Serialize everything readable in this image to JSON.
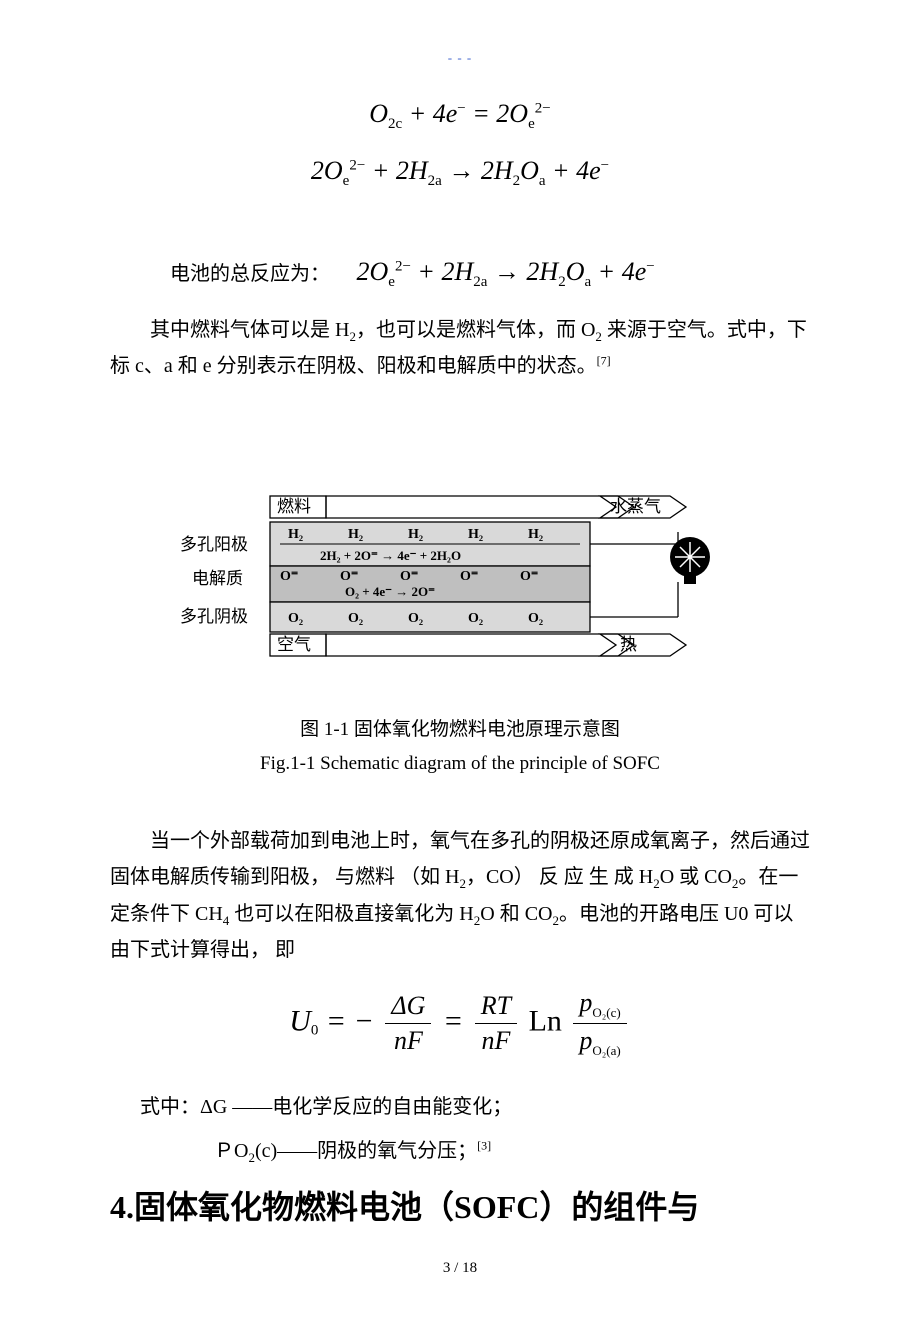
{
  "top_dash": "- - -",
  "equations": {
    "eq1_html": "O<sub>2c</sub> + 4e<sup>−</sup> = 2O<sub>e</sub><sup>2−</sup>",
    "eq2_html": "2O<sub>e</sub><sup>2−</sup> + 2H<sub>2a</sub> → 2H<sub>2</sub>O<sub>a</sub> + 4e<sup>−</sup>",
    "total_label": "电池的总反应为：",
    "total_html": "2O<sub>e</sub><sup>2−</sup> + 2H<sub>2a</sub> → 2H<sub>2</sub>O<sub>a</sub> + 4e<sup>−</sup>"
  },
  "paragraphs": {
    "p1_html": "其中燃料气体可以是 H<sub>2</sub>，也可以是燃料气体，而 O<sub>2</sub> 来源于空气。式中，下标 c、a 和 e 分别表示在阴极、阳极和电解质中的状态。<span class=\"ref-sup\">[7]</span>",
    "p2_html": "当一个外部载荷加到电池上时，氧气在多孔的阴极还原成氧离子，然后通过固体电解质传输到阳极，  与燃料 （如 H<sub>2</sub>，CO） 反 应  生  成 H<sub>2</sub>O 或 CO<sub>2</sub>。在一定条件下 CH<sub>4</sub> 也可以在阳极直接氧化为 H<sub>2</sub>O 和 CO<sub>2</sub>。电池的开路电压  U0 可以由下式计算得出，  即"
  },
  "figure": {
    "labels": {
      "fuel": "燃料",
      "steam": "水蒸气",
      "anode": "多孔阳极",
      "electrolyte": "电解质",
      "cathode": "多孔阴极",
      "air": "空气",
      "heat": "热",
      "H2": "H₂",
      "O2": "O₂",
      "Oeq": "O⁼",
      "anode_eq": "2H₂ + 2O⁼ → 4e⁻ + 2H₂O",
      "cathode_eq": "O₂ + 4e⁻ → 2O⁼"
    },
    "caption_cn": "图 1-1  固体氧化物燃料电池原理示意图",
    "caption_en": "Fig.1-1 Schematic diagram of the principle of SOFC",
    "colors": {
      "stroke": "#000000",
      "anode_fill": "#d9d9d9",
      "electrolyte_fill": "#bfbfbf",
      "cathode_fill": "#d9d9d9",
      "bulb_fill": "#000000"
    }
  },
  "nernst": {
    "U0": "U",
    "sub0": "0",
    "eq_sign": " = ",
    "minus": " − ",
    "dG": "ΔG",
    "nF": "nF",
    "RT": "RT",
    "Ln": "Ln",
    "pO2c": "p",
    "O2c_sub": "O₂(c)",
    "pO2a": "p",
    "O2a_sub": "O₂(a)"
  },
  "where": {
    "line1_html": "式中：ΔG ——电化学反应的自由能变化；",
    "line2_html": "ＰO<sub>2</sub>(c)——阴极的氧气分压；<span class=\"ref-sup\">[3]</span>"
  },
  "section_title_html": "4.固体氧化物燃料电池（<span class=\"lat\">SOFC</span>）的组件与",
  "page_number": "3 / 18"
}
